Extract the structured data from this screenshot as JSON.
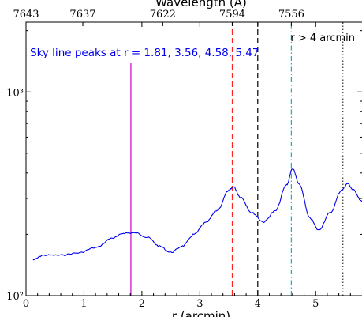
{
  "chart_data": {
    "type": "line",
    "title": "",
    "xlabel": "r (arcmin)",
    "ylabel": "",
    "top_xlabel": "Wavelength (Å)",
    "y_scale": "log",
    "xlim": [
      0,
      5.8
    ],
    "ylim": [
      100,
      2200
    ],
    "x_ticks": [
      0,
      1,
      2,
      3,
      4,
      5
    ],
    "x_tick_labels": [
      "0",
      "1",
      "2",
      "3",
      "4",
      "5"
    ],
    "y_tick_labels": [
      {
        "value": 100,
        "text": "10²"
      },
      {
        "value": 1000,
        "text": "10³"
      }
    ],
    "top_ticks": [
      {
        "r": 0.0,
        "label": "7643"
      },
      {
        "r": 0.98,
        "label": "7637"
      },
      {
        "r": 2.36,
        "label": "7622"
      },
      {
        "r": 3.56,
        "label": "7594"
      },
      {
        "r": 4.58,
        "label": "7556"
      }
    ],
    "series": [
      {
        "color": "#0000ee",
        "x": [
          0.12,
          0.3,
          0.6,
          0.9,
          1.2,
          1.5,
          1.7,
          1.9,
          2.1,
          2.3,
          2.5,
          2.7,
          2.9,
          3.1,
          3.3,
          3.5,
          3.58,
          3.7,
          3.9,
          4.1,
          4.3,
          4.5,
          4.6,
          4.72,
          4.9,
          5.05,
          5.25,
          5.45,
          5.55,
          5.65,
          5.8
        ],
        "y": [
          150,
          158,
          158,
          162,
          172,
          192,
          203,
          203,
          193,
          175,
          163,
          175,
          200,
          228,
          262,
          328,
          342,
          305,
          255,
          230,
          260,
          350,
          420,
          350,
          240,
          210,
          255,
          330,
          355,
          330,
          290
        ]
      }
    ],
    "vlines": [
      {
        "x": 1.81,
        "color": "#cc00cc",
        "style": "solid"
      },
      {
        "x": 3.56,
        "color": "#ff2222",
        "style": "dashed"
      },
      {
        "x": 4.0,
        "color": "#000000",
        "style": "dashed"
      },
      {
        "x": 4.58,
        "color": "#00bbbb",
        "style": "dashdot"
      },
      {
        "x": 5.47,
        "color": "#333333",
        "style": "dotted"
      }
    ],
    "annotations": [
      {
        "text": "Sky line peaks at r = 1.81, 3.56, 4.58, 5.47",
        "color": "#0000ee"
      },
      {
        "text": "r > 4 arcmin",
        "color": "#000000"
      }
    ]
  }
}
